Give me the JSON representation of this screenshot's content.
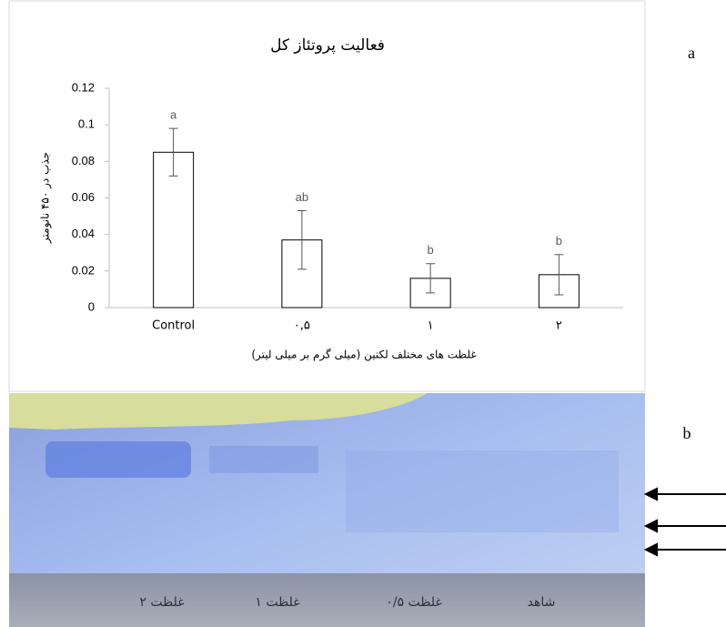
{
  "chart_data": {
    "type": "bar",
    "title": "فعالیت پروتئاز کل",
    "y_label": "جذب در ۴۵۰ نانومتر",
    "x_label": "غلظت های مختلف لکتین (میلی گرم بر میلی لیتر)",
    "categories": [
      "Control",
      "۰,۵",
      "۱",
      "۲"
    ],
    "values": [
      0.085,
      0.037,
      0.016,
      0.018
    ],
    "errors": [
      0.013,
      0.016,
      0.008,
      0.011
    ],
    "annotations": [
      "a",
      "ab",
      "b",
      "b"
    ],
    "color": "#ffffff",
    "ylim": [
      0,
      0.12
    ],
    "yticks": [
      0,
      0.02,
      0.04,
      0.06,
      0.08,
      0.1,
      0.12
    ],
    "grid": false
  },
  "panel_labels": [
    "a",
    "b"
  ],
  "gel_lanes": [
    "غلظت ۲",
    "غلظت ۱",
    "غلظت ۰/۵",
    "شاهد"
  ]
}
